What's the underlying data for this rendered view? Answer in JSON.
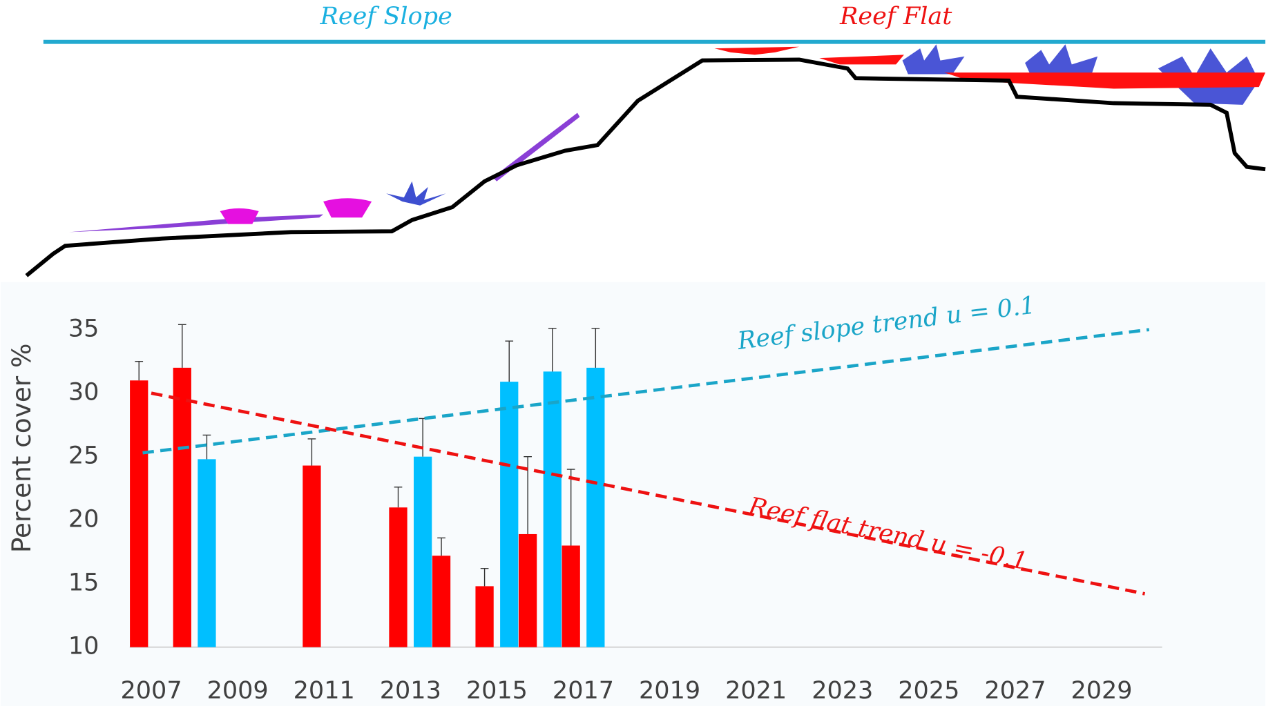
{
  "diagram": {
    "zones": [
      "Reef Slope",
      "Reef Flat"
    ]
  },
  "chart_data": {
    "type": "bar",
    "x": [
      2007,
      2008,
      2011,
      2013,
      2014,
      2015,
      2016,
      2017
    ],
    "series": [
      {
        "color": "#ff0000",
        "values": [
          31.0,
          32.0,
          24.3,
          21.0,
          17.2,
          14.8,
          18.9,
          18.0
        ],
        "errors": [
          1.5,
          3.4,
          2.1,
          1.6,
          1.4,
          1.4,
          6.1,
          6.0
        ]
      },
      {
        "color": "#00bfff",
        "values": [
          null,
          24.8,
          null,
          25.0,
          null,
          30.9,
          31.7,
          32.0
        ],
        "errors": [
          null,
          1.9,
          null,
          3.0,
          null,
          3.2,
          3.4,
          3.1
        ]
      }
    ],
    "trends": [
      {
        "name": "Reef slope trend u = 0.1",
        "color": "#1aa5c8",
        "x": [
          2006.8,
          2030.1
        ],
        "values": [
          25.3,
          35.0
        ]
      },
      {
        "name": "Reef flat trend u = -0.1",
        "color": "#ee1111",
        "x": [
          2007,
          2030
        ],
        "values": [
          30.0,
          14.2
        ]
      }
    ],
    "y_label": "Percent cover %",
    "xlim": [
      2006.5,
      2030.4
    ],
    "xticks": [
      2007,
      2009,
      2011,
      2013,
      2015,
      2017,
      2019,
      2021,
      2023,
      2025,
      2027,
      2029
    ],
    "ylim": [
      10,
      35
    ],
    "yticks": [
      10,
      15,
      20,
      25,
      30,
      35
    ]
  }
}
